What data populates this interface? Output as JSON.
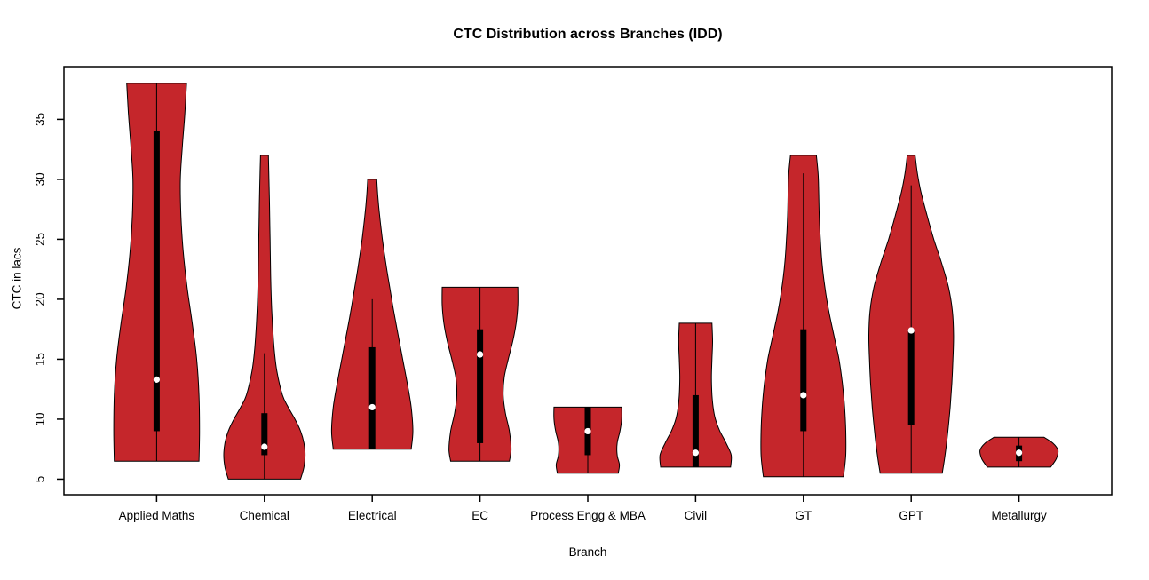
{
  "title": "CTC Distribution across Branches (IDD)",
  "chart_data": {
    "type": "violin",
    "title": "CTC Distribution across Branches (IDD)",
    "xlabel": "Branch",
    "ylabel": "CTC in lacs",
    "ylim": [
      3.7,
      39.4
    ],
    "yticks": [
      5,
      10,
      15,
      20,
      25,
      30,
      35
    ],
    "grid": false,
    "fill_color": "#C5262B",
    "outline_color": "#000000",
    "categories": [
      "Applied Maths",
      "Chemical",
      "Electrical",
      "EC",
      "Process Engg & MBA",
      "Civil",
      "GT",
      "GPT",
      "Metallurgy"
    ],
    "violins": [
      {
        "name": "Applied Maths",
        "median": 13.3,
        "q1": 9.0,
        "q3": 34.0,
        "whisker_low": 6.5,
        "whisker_high": 38.0,
        "range": [
          6.5,
          38.0
        ],
        "profile": [
          [
            6.5,
            0.375
          ],
          [
            9,
            0.38
          ],
          [
            12,
            0.375
          ],
          [
            15,
            0.355
          ],
          [
            18,
            0.315
          ],
          [
            21,
            0.27
          ],
          [
            24,
            0.235
          ],
          [
            27,
            0.215
          ],
          [
            30,
            0.21
          ],
          [
            33,
            0.23
          ],
          [
            35.5,
            0.25
          ],
          [
            38,
            0.265
          ]
        ]
      },
      {
        "name": "Chemical",
        "median": 7.7,
        "q1": 7.0,
        "q3": 10.5,
        "whisker_low": 5.0,
        "whisker_high": 15.5,
        "range": [
          5.0,
          32.0
        ],
        "profile": [
          [
            5,
            0.32
          ],
          [
            6,
            0.35
          ],
          [
            7,
            0.36
          ],
          [
            8,
            0.35
          ],
          [
            9,
            0.32
          ],
          [
            10,
            0.27
          ],
          [
            11,
            0.21
          ],
          [
            12,
            0.16
          ],
          [
            14,
            0.11
          ],
          [
            16,
            0.085
          ],
          [
            19,
            0.065
          ],
          [
            22,
            0.055
          ],
          [
            25,
            0.05
          ],
          [
            28,
            0.045
          ],
          [
            30,
            0.04
          ],
          [
            32,
            0.035
          ]
        ]
      },
      {
        "name": "Electrical",
        "median": 11.0,
        "q1": 7.5,
        "q3": 16.0,
        "whisker_low": 7.5,
        "whisker_high": 20.0,
        "range": [
          7.5,
          30.0
        ],
        "profile": [
          [
            7.5,
            0.345
          ],
          [
            9,
            0.36
          ],
          [
            11,
            0.345
          ],
          [
            13,
            0.31
          ],
          [
            15,
            0.27
          ],
          [
            17,
            0.23
          ],
          [
            19,
            0.19
          ],
          [
            21,
            0.155
          ],
          [
            23,
            0.12
          ],
          [
            25,
            0.09
          ],
          [
            27,
            0.065
          ],
          [
            28.5,
            0.05
          ],
          [
            30,
            0.04
          ]
        ]
      },
      {
        "name": "EC",
        "median": 15.4,
        "q1": 8.0,
        "q3": 17.5,
        "whisker_low": 6.5,
        "whisker_high": 21.0,
        "range": [
          6.5,
          21.0
        ],
        "profile": [
          [
            6.5,
            0.26
          ],
          [
            7.5,
            0.275
          ],
          [
            9,
            0.26
          ],
          [
            10.5,
            0.225
          ],
          [
            12,
            0.205
          ],
          [
            13.5,
            0.215
          ],
          [
            15,
            0.25
          ],
          [
            16.5,
            0.29
          ],
          [
            18,
            0.32
          ],
          [
            19.5,
            0.335
          ],
          [
            21,
            0.335
          ]
        ]
      },
      {
        "name": "Process Engg & MBA",
        "median": 9.0,
        "q1": 7.0,
        "q3": 11.0,
        "whisker_low": 5.5,
        "whisker_high": 11.0,
        "range": [
          5.5,
          11.0
        ],
        "profile": [
          [
            5.5,
            0.27
          ],
          [
            6.2,
            0.28
          ],
          [
            7,
            0.26
          ],
          [
            8,
            0.26
          ],
          [
            9,
            0.285
          ],
          [
            10,
            0.3
          ],
          [
            11,
            0.3
          ]
        ]
      },
      {
        "name": "Civil",
        "median": 7.2,
        "q1": 6.0,
        "q3": 12.0,
        "whisker_low": 6.0,
        "whisker_high": 18.0,
        "range": [
          6.0,
          18.0
        ],
        "profile": [
          [
            6,
            0.31
          ],
          [
            7,
            0.315
          ],
          [
            8,
            0.27
          ],
          [
            9,
            0.215
          ],
          [
            10,
            0.175
          ],
          [
            11,
            0.155
          ],
          [
            12,
            0.145
          ],
          [
            13.5,
            0.14
          ],
          [
            15,
            0.145
          ],
          [
            16.5,
            0.15
          ],
          [
            18,
            0.145
          ]
        ]
      },
      {
        "name": "GT",
        "median": 12.0,
        "q1": 9.0,
        "q3": 17.5,
        "whisker_low": 5.2,
        "whisker_high": 30.5,
        "range": [
          5.2,
          32.0
        ],
        "profile": [
          [
            5.2,
            0.355
          ],
          [
            7,
            0.375
          ],
          [
            9,
            0.375
          ],
          [
            11,
            0.365
          ],
          [
            13,
            0.345
          ],
          [
            15,
            0.315
          ],
          [
            17,
            0.27
          ],
          [
            19,
            0.225
          ],
          [
            21,
            0.19
          ],
          [
            23,
            0.165
          ],
          [
            25,
            0.15
          ],
          [
            27,
            0.14
          ],
          [
            29,
            0.135
          ],
          [
            30.5,
            0.13
          ],
          [
            32,
            0.115
          ]
        ]
      },
      {
        "name": "GPT",
        "median": 17.4,
        "q1": 9.5,
        "q3": 17.5,
        "whisker_low": 5.5,
        "whisker_high": 29.5,
        "range": [
          5.5,
          32.0
        ],
        "profile": [
          [
            5.5,
            0.275
          ],
          [
            7,
            0.3
          ],
          [
            9,
            0.325
          ],
          [
            11,
            0.345
          ],
          [
            13,
            0.36
          ],
          [
            15,
            0.37
          ],
          [
            17,
            0.375
          ],
          [
            19,
            0.365
          ],
          [
            21,
            0.33
          ],
          [
            23,
            0.27
          ],
          [
            25,
            0.2
          ],
          [
            27,
            0.14
          ],
          [
            29,
            0.085
          ],
          [
            30.5,
            0.055
          ],
          [
            32,
            0.035
          ]
        ]
      },
      {
        "name": "Metallurgy",
        "median": 7.2,
        "q1": 6.5,
        "q3": 7.8,
        "whisker_low": 6.0,
        "whisker_high": 8.5,
        "range": [
          6.0,
          8.5
        ],
        "profile": [
          [
            6,
            0.28
          ],
          [
            6.7,
            0.33
          ],
          [
            7.4,
            0.345
          ],
          [
            8,
            0.3
          ],
          [
            8.5,
            0.22
          ]
        ]
      }
    ]
  }
}
